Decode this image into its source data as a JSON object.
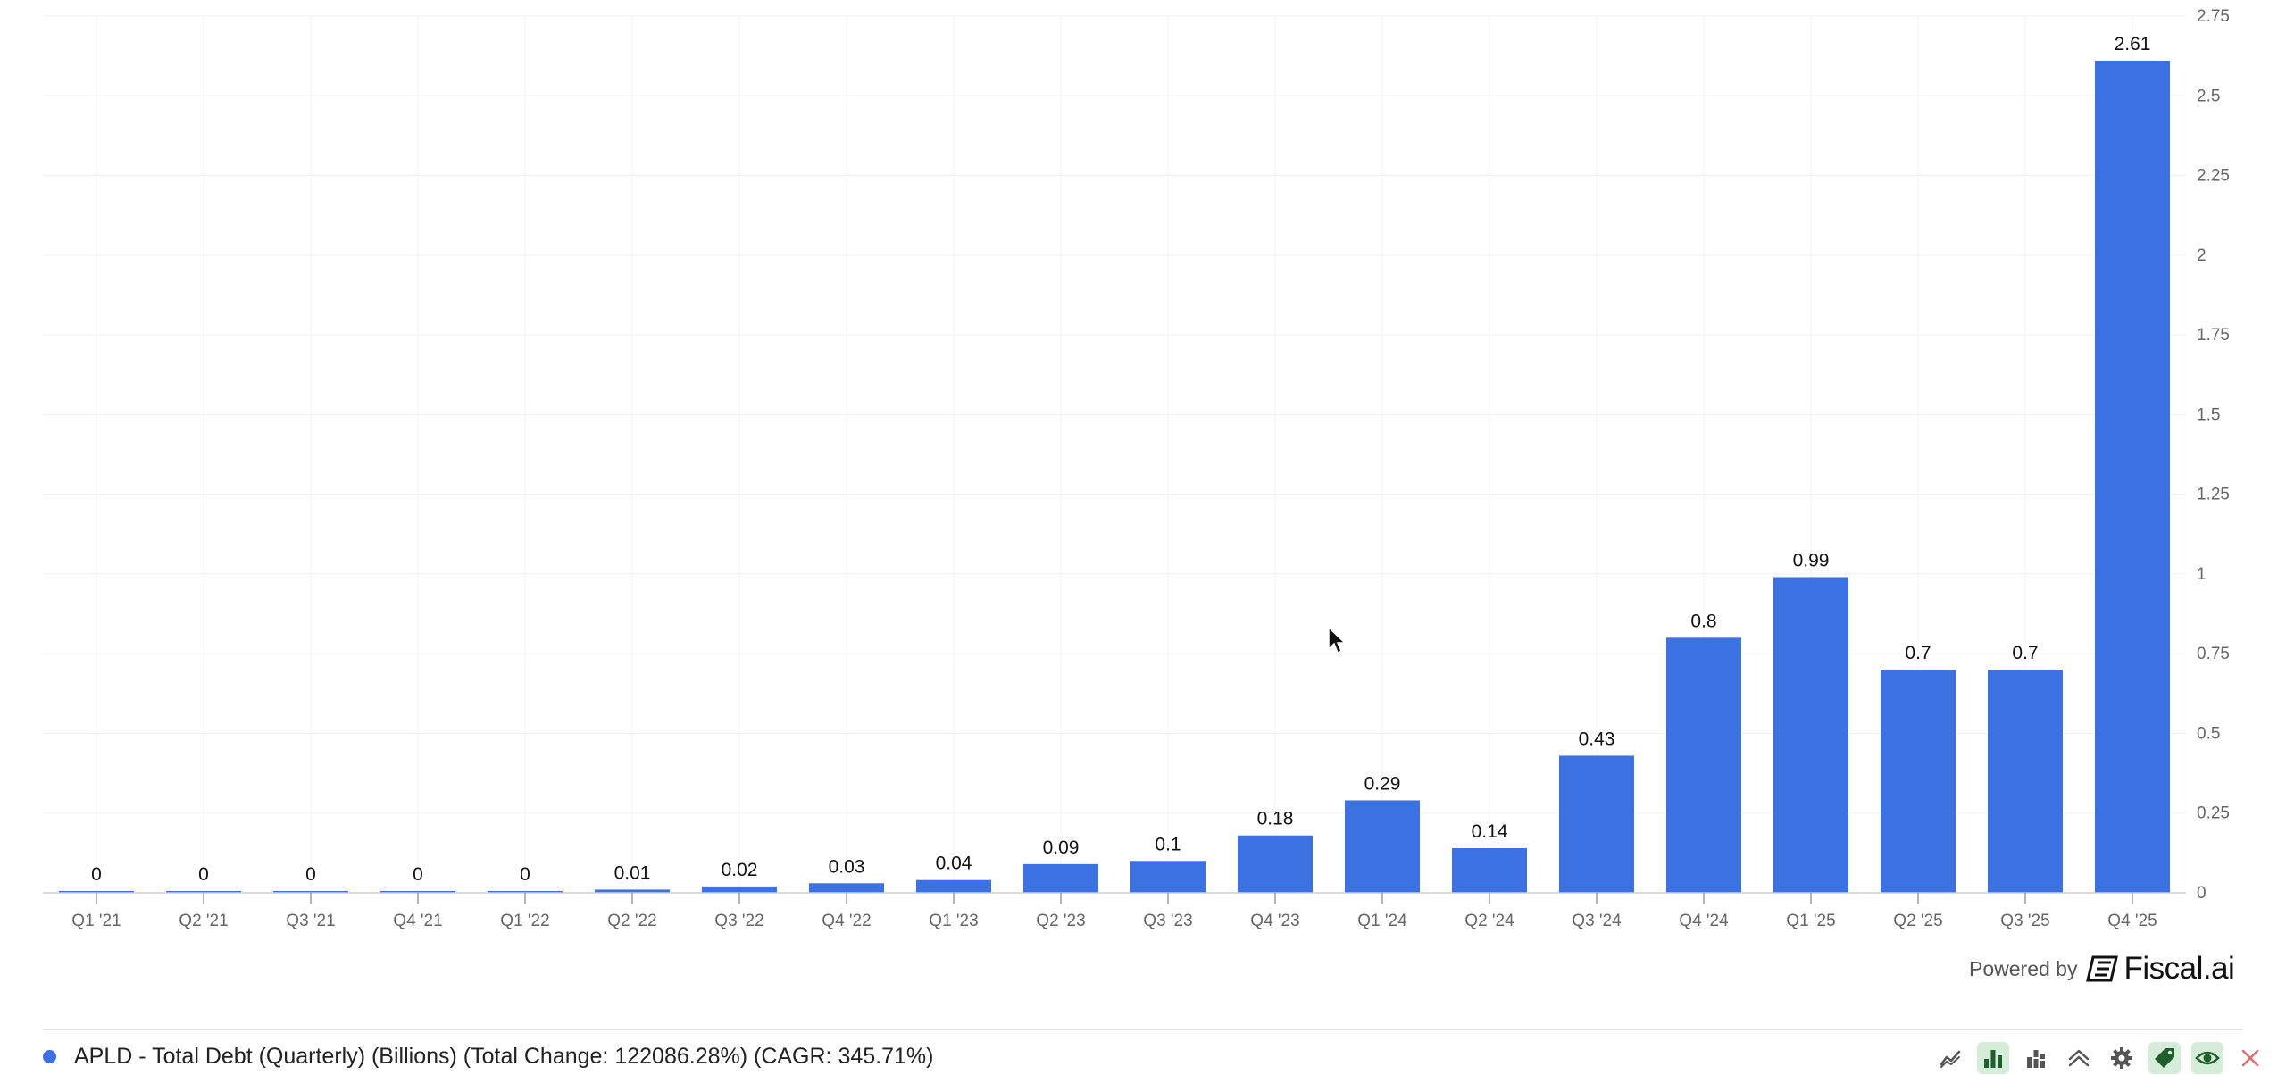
{
  "chart_data": {
    "type": "bar",
    "categories": [
      "Q1 '21",
      "Q2 '21",
      "Q3 '21",
      "Q4 '21",
      "Q1 '22",
      "Q2 '22",
      "Q3 '22",
      "Q4 '22",
      "Q1 '23",
      "Q2 '23",
      "Q3 '23",
      "Q4 '23",
      "Q1 '24",
      "Q2 '24",
      "Q3 '24",
      "Q4 '24",
      "Q1 '25",
      "Q2 '25",
      "Q3 '25",
      "Q4 '25"
    ],
    "values": [
      0,
      0,
      0,
      0,
      0,
      0.01,
      0.02,
      0.03,
      0.04,
      0.09,
      0.1,
      0.18,
      0.29,
      0.14,
      0.43,
      0.8,
      0.99,
      0.7,
      0.7,
      2.61
    ],
    "labels": [
      "0",
      "0",
      "0",
      "0",
      "0",
      "0.01",
      "0.02",
      "0.03",
      "0.04",
      "0.09",
      "0.1",
      "0.18",
      "0.29",
      "0.14",
      "0.43",
      "0.8",
      "0.99",
      "0.7",
      "0.7",
      "2.61"
    ],
    "ylim": [
      0,
      2.75
    ],
    "yticks": [
      "0",
      "0.25",
      "0.5",
      "0.75",
      "1",
      "1.25",
      "1.5",
      "1.75",
      "2",
      "2.25",
      "2.5",
      "2.75"
    ],
    "y_axis_position": "right",
    "grid": true,
    "legend_position": "bottom-left",
    "series_color": "#3b71e2",
    "series": [
      {
        "name": "APLD - Total Debt (Quarterly) (Billions) (Total Change: 122086.28%) (CAGR: 345.71%)"
      }
    ]
  },
  "branding": {
    "powered_by": "Powered by",
    "brand": "Fiscal.ai"
  },
  "legend": {
    "text": "APLD - Total Debt (Quarterly) (Billions) (Total Change: 122086.28%) (CAGR: 345.71%)",
    "dot_color": "#3b71e2"
  },
  "toolbar": {
    "buttons": [
      {
        "icon": "line-chart-icon",
        "active": false
      },
      {
        "icon": "bar-chart-icon",
        "active": true
      },
      {
        "icon": "stacked-bar-icon",
        "active": false
      },
      {
        "icon": "trend-chevron-icon",
        "active": false
      },
      {
        "icon": "gear-icon",
        "active": false
      },
      {
        "icon": "tag-icon",
        "active": true
      },
      {
        "icon": "eye-icon",
        "active": true
      },
      {
        "icon": "close-icon",
        "active": false
      }
    ]
  }
}
